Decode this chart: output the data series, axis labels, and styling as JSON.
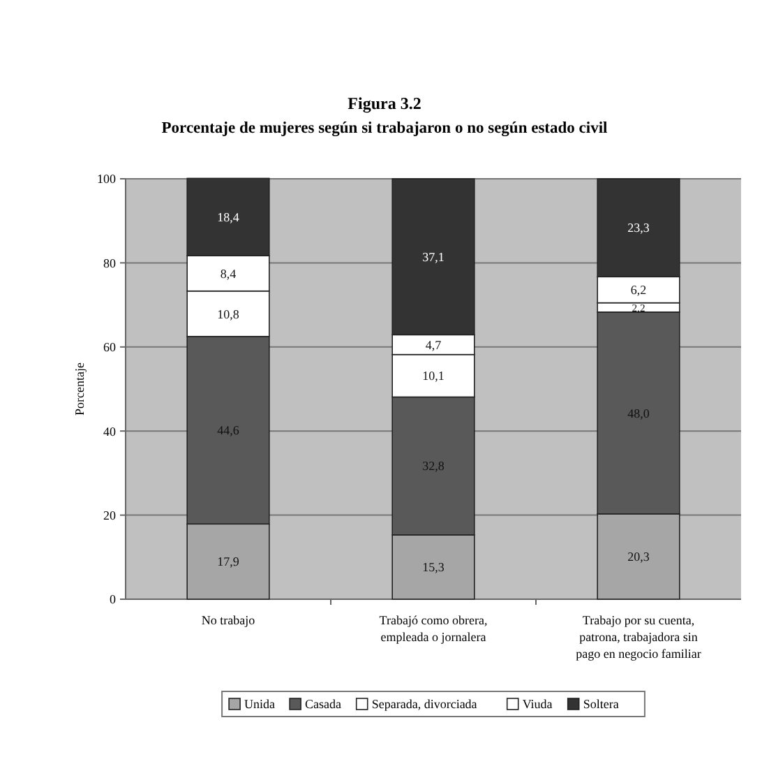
{
  "chart_data": {
    "type": "bar",
    "stacked": true,
    "title": "Figura 3.2",
    "subtitle": "Porcentaje de mujeres según si trabajaron o no según estado civil",
    "ylabel": "Porcentaje",
    "categories": [
      "No trabajo",
      "Trabajó como obrera, empleada o jornalera",
      "Trabajo por su cuenta, patrona, trabajadora sin pago en negocio familiar"
    ],
    "series": [
      {
        "name": "Unida",
        "color": "#a6a6a6",
        "values": [
          17.9,
          15.3,
          20.3
        ],
        "value_labels": [
          "17,9",
          "15,3",
          "20,3"
        ]
      },
      {
        "name": "Casada",
        "color": "#595959",
        "values": [
          44.6,
          32.8,
          48.0
        ],
        "value_labels": [
          "44,6",
          "32,8",
          "48,0"
        ]
      },
      {
        "name": "Separada, divorciada",
        "color": "#ffffff",
        "values": [
          10.8,
          10.1,
          2.2
        ],
        "value_labels": [
          "10,8",
          "10,1",
          "2,2"
        ]
      },
      {
        "name": "Viuda",
        "color": "#ffffff",
        "values": [
          8.4,
          4.7,
          6.2
        ],
        "value_labels": [
          "8,4",
          "4,7",
          "6,2"
        ]
      },
      {
        "name": "Soltera",
        "color": "#333333",
        "values": [
          18.4,
          37.1,
          23.3
        ],
        "value_labels": [
          "18,4",
          "37,1",
          "23,3"
        ]
      }
    ],
    "ylim": [
      0,
      100
    ],
    "yticks": [
      0,
      20,
      40,
      60,
      80,
      100
    ],
    "grid": "y",
    "legend": "bottom"
  }
}
